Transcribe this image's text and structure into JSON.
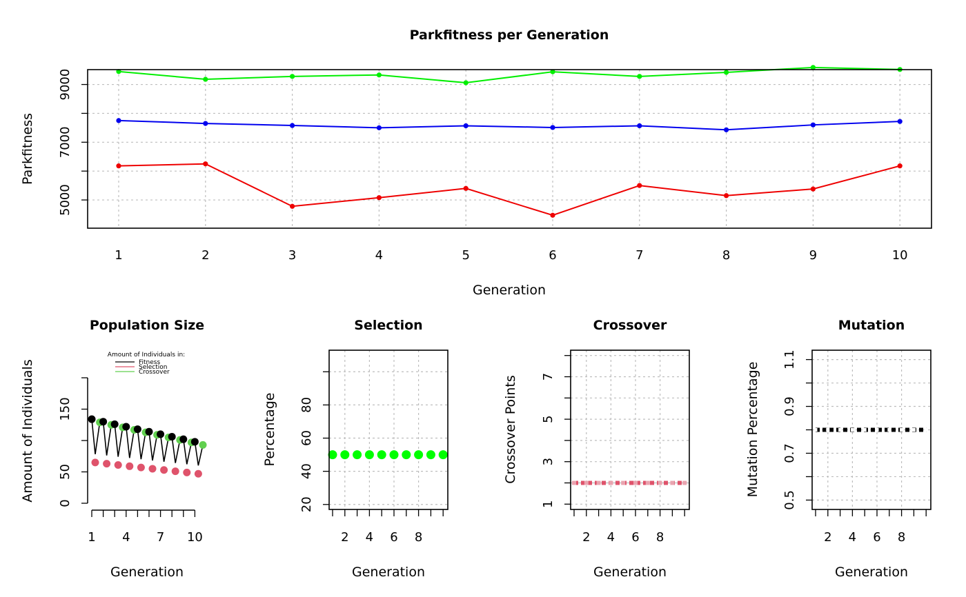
{
  "chart_data": [
    {
      "type": "line",
      "title": "Parkfitness per Generation",
      "xlabel": "Generation",
      "ylabel": "Parkfitness",
      "x": [
        1,
        2,
        3,
        4,
        5,
        6,
        7,
        8,
        9,
        10
      ],
      "xticks": [
        "1",
        "2",
        "3",
        "4",
        "5",
        "6",
        "7",
        "8",
        "9",
        "10"
      ],
      "yticks": [
        "5000",
        "7000",
        "9000"
      ],
      "ylim": [
        4300,
        9800
      ],
      "grid": true,
      "series": [
        {
          "color": "#00ee00",
          "values": [
            9450,
            9180,
            9280,
            9330,
            9060,
            9440,
            9280,
            9420,
            9590,
            9520
          ]
        },
        {
          "color": "#0000ee",
          "values": [
            7750,
            7650,
            7580,
            7500,
            7570,
            7510,
            7570,
            7430,
            7600,
            7720
          ]
        },
        {
          "color": "#ee0000",
          "values": [
            6180,
            6250,
            4780,
            5080,
            5400,
            4470,
            5500,
            5150,
            5380,
            6180
          ]
        }
      ]
    },
    {
      "type": "scatter",
      "title": "Population Size",
      "xlabel": "Generation",
      "ylabel": "Amount of Individuals",
      "xticks": [
        "1",
        "4",
        "7",
        "10"
      ],
      "yticks": [
        "0",
        "50",
        "150"
      ],
      "ylim": [
        0,
        200
      ],
      "legend": {
        "title": "Amount of Individuals in:",
        "position": "top",
        "entries": [
          {
            "label": "Fitness",
            "color": "#000000"
          },
          {
            "label": "Selection",
            "color": "#df536b"
          },
          {
            "label": "Crossover",
            "color": "#61d04f"
          }
        ]
      },
      "series": [
        {
          "key": "fitness",
          "color": "#000000",
          "x": [
            1,
            2,
            3,
            4,
            5,
            6,
            7,
            8,
            9,
            10
          ],
          "values": [
            134,
            130,
            126,
            122,
            118,
            114,
            110,
            106,
            102,
            98
          ]
        },
        {
          "key": "selection",
          "color": "#df536b",
          "x": [
            1,
            2,
            3,
            4,
            5,
            6,
            7,
            8,
            9,
            10
          ],
          "values": [
            65,
            63,
            61,
            59,
            57,
            55,
            53,
            51,
            49,
            47
          ]
        },
        {
          "key": "crossover",
          "color": "#61d04f",
          "x": [
            1.7,
            2.7,
            3.7,
            4.7,
            5.7,
            6.7,
            7.7,
            8.7,
            9.7,
            10.7
          ],
          "values": [
            129,
            125,
            121,
            117,
            113,
            109,
            105,
            101,
            97,
            93
          ]
        }
      ]
    },
    {
      "type": "scatter",
      "title": "Selection",
      "xlabel": "Generation",
      "ylabel": "Percentage",
      "xticks": [
        "2",
        "4",
        "6",
        "8"
      ],
      "yticks": [
        "20",
        "40",
        "60",
        "80"
      ],
      "ylim": [
        17,
        113
      ],
      "grid": true,
      "color": "#00ff00",
      "x": [
        1,
        2,
        3,
        4,
        5,
        6,
        7,
        8,
        9,
        10
      ],
      "values": [
        50,
        50,
        50,
        50,
        50,
        50,
        50,
        50,
        50,
        50
      ]
    },
    {
      "type": "line",
      "title": "Crossover",
      "xlabel": "Generation",
      "ylabel": "Crossover Points",
      "xticks": [
        "2",
        "4",
        "6",
        "8"
      ],
      "yticks": [
        "1",
        "3",
        "5",
        "7"
      ],
      "ylim": [
        0.75,
        8.25
      ],
      "grid": true,
      "color": "#df536b",
      "x": [
        1,
        2,
        3,
        4,
        5,
        6,
        7,
        8,
        9,
        10
      ],
      "values": [
        2,
        2,
        2,
        2,
        2,
        2,
        2,
        2,
        2,
        2
      ]
    },
    {
      "type": "line",
      "title": "Mutation",
      "xlabel": "Generation",
      "ylabel": "Mutation Percentage",
      "xticks": [
        "2",
        "4",
        "6",
        "8"
      ],
      "yticks": [
        "0.5",
        "0.7",
        "0.9",
        "1.1"
      ],
      "ylim": [
        0.46,
        1.14
      ],
      "grid": true,
      "color": "#000000",
      "x": [
        1,
        2,
        3,
        4,
        5,
        6,
        7,
        8,
        9,
        10
      ],
      "values": [
        0.8,
        0.8,
        0.8,
        0.8,
        0.8,
        0.8,
        0.8,
        0.8,
        0.8,
        0.8
      ]
    }
  ]
}
